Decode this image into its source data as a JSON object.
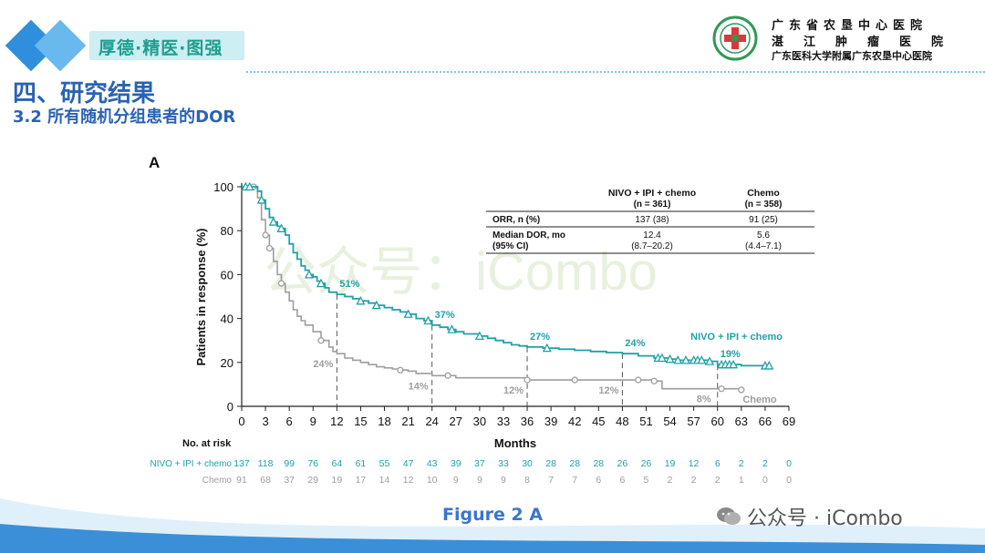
{
  "header": {
    "slogan": "厚德·精医·图强",
    "hospital_line1": "广东省农垦中心医院",
    "hospital_line2": "湛江肿瘤医院",
    "hospital_line3": "广东医科大学附属广东农垦中心医院"
  },
  "section": {
    "title": "四、研究结果",
    "subtitle": "3.2 所有随机分组患者的DOR"
  },
  "figure_caption": "Figure 2 A",
  "wechat_watermark": "公众号 · iCombo",
  "colors": {
    "nivo": "#21a1a6",
    "chemo": "#9e9e9e",
    "title_blue": "#2a63b3",
    "caption_blue": "#3a74d0"
  },
  "chart_data": {
    "type": "line",
    "panel_label": "A",
    "background_watermark": "公众号：iCombo",
    "xlabel": "Months",
    "ylabel": "Patients in response (%)",
    "xlim": [
      0,
      69
    ],
    "ylim": [
      0,
      100
    ],
    "xticks": [
      0,
      3,
      6,
      9,
      12,
      15,
      18,
      21,
      24,
      27,
      30,
      33,
      36,
      39,
      42,
      45,
      48,
      51,
      54,
      57,
      60,
      63,
      66,
      69
    ],
    "yticks": [
      0,
      20,
      40,
      60,
      80,
      100
    ],
    "series": [
      {
        "name": "NIVO + IPI + chemo",
        "color": "#21a1a6",
        "x": [
          0,
          1.5,
          2,
          2.5,
          3,
          3.5,
          4,
          4.5,
          5,
          5.5,
          6,
          6.5,
          7,
          7.5,
          8,
          8.5,
          9,
          9.5,
          10,
          10.5,
          11,
          12,
          13,
          14,
          15,
          16,
          17,
          18,
          19,
          20,
          21,
          22,
          23,
          24,
          25,
          26,
          27,
          28,
          29,
          30,
          31,
          32,
          33,
          34,
          35,
          36,
          38,
          40,
          42,
          44,
          46,
          48,
          50,
          52,
          53,
          54,
          55,
          56,
          57,
          58,
          59,
          60,
          61,
          62,
          63,
          64,
          65,
          66.5
        ],
        "y": [
          100,
          100,
          98,
          94,
          90,
          86,
          84,
          82,
          81,
          78,
          74,
          70,
          67,
          64,
          62,
          60,
          59,
          57,
          56,
          54,
          52,
          51,
          50,
          49,
          48,
          47,
          46,
          45,
          44,
          43,
          42,
          40,
          39,
          37,
          36,
          35,
          34,
          33,
          33,
          32,
          31,
          30,
          29,
          28,
          27.5,
          27,
          26.5,
          26,
          25.5,
          25,
          24.5,
          24,
          23,
          22,
          22,
          21.5,
          21,
          21,
          21,
          21,
          20.5,
          19,
          19,
          19,
          18.5,
          18.5,
          18.5,
          18.5
        ],
        "censor_x": [
          0.5,
          1,
          2.5,
          4,
          5,
          8.5,
          10,
          15,
          17,
          21,
          23.5,
          26.5,
          30,
          38.5,
          52.5,
          53,
          54,
          55,
          56,
          57,
          57.5,
          58,
          59,
          60.5,
          61,
          61.5,
          62,
          66,
          66.5
        ],
        "milestones": [
          {
            "month": 12,
            "label": "51%",
            "value": 51
          },
          {
            "month": 24,
            "label": "37%",
            "value": 37
          },
          {
            "month": 36,
            "label": "27%",
            "value": 27
          },
          {
            "month": 48,
            "label": "24%",
            "value": 24
          },
          {
            "month": 60,
            "label": "19%",
            "value": 19
          }
        ],
        "end_label": "NIVO + IPI + chemo"
      },
      {
        "name": "Chemo",
        "color": "#9e9e9e",
        "x": [
          0,
          2,
          2.5,
          3,
          3.5,
          4,
          4.5,
          5,
          5.5,
          6,
          6.5,
          7,
          7.5,
          8,
          9,
          10,
          11,
          11.5,
          12,
          13,
          14,
          15,
          16,
          17,
          18,
          19,
          20,
          21,
          22,
          24,
          27,
          36,
          40,
          44,
          48,
          52,
          53,
          60,
          63
        ],
        "y": [
          100,
          95,
          85,
          78,
          72,
          66,
          60,
          56,
          52,
          48,
          44,
          41,
          39,
          37,
          34,
          30,
          27,
          25,
          24,
          22,
          21,
          20,
          19,
          18,
          17.5,
          17,
          16.5,
          16,
          15,
          14,
          13,
          12,
          12,
          12,
          12,
          11.5,
          8,
          8,
          7.5
        ],
        "censor_x": [
          1.5,
          3,
          3.5,
          5,
          10,
          20,
          26,
          36,
          42,
          50,
          52,
          60.5,
          63
        ],
        "milestones": [
          {
            "month": 12,
            "label": "24%",
            "value": 24
          },
          {
            "month": 24,
            "label": "14%",
            "value": 14
          },
          {
            "month": 36,
            "label": "12%",
            "value": 12
          },
          {
            "month": 48,
            "label": "12%",
            "value": 12
          },
          {
            "month": 60,
            "label": "8%",
            "value": 8
          }
        ],
        "end_label": "Chemo"
      }
    ],
    "summary_table": {
      "columns": [
        "",
        "NIVO + IPI + chemo",
        "Chemo"
      ],
      "n_row": [
        "",
        "(n = 361)",
        "(n = 358)"
      ],
      "rows": [
        [
          "ORR, n (%)",
          "137 (38)",
          "91 (25)"
        ],
        [
          "Median DOR, mo",
          "12.4",
          "5.6"
        ],
        [
          "(95% CI)",
          "(8.7–20.2)",
          "(4.4–7.1)"
        ]
      ]
    },
    "risk_table": {
      "title": "No. at risk",
      "rows": [
        {
          "label": "NIVO + IPI + chemo",
          "values": [
            137,
            118,
            99,
            76,
            64,
            61,
            55,
            47,
            43,
            39,
            37,
            33,
            30,
            28,
            28,
            28,
            26,
            26,
            19,
            12,
            6,
            2,
            2,
            0
          ]
        },
        {
          "label": "Chemo",
          "values": [
            91,
            68,
            37,
            29,
            19,
            17,
            14,
            12,
            10,
            9,
            9,
            9,
            8,
            7,
            7,
            6,
            6,
            5,
            2,
            2,
            2,
            1,
            0,
            0
          ]
        }
      ]
    }
  }
}
